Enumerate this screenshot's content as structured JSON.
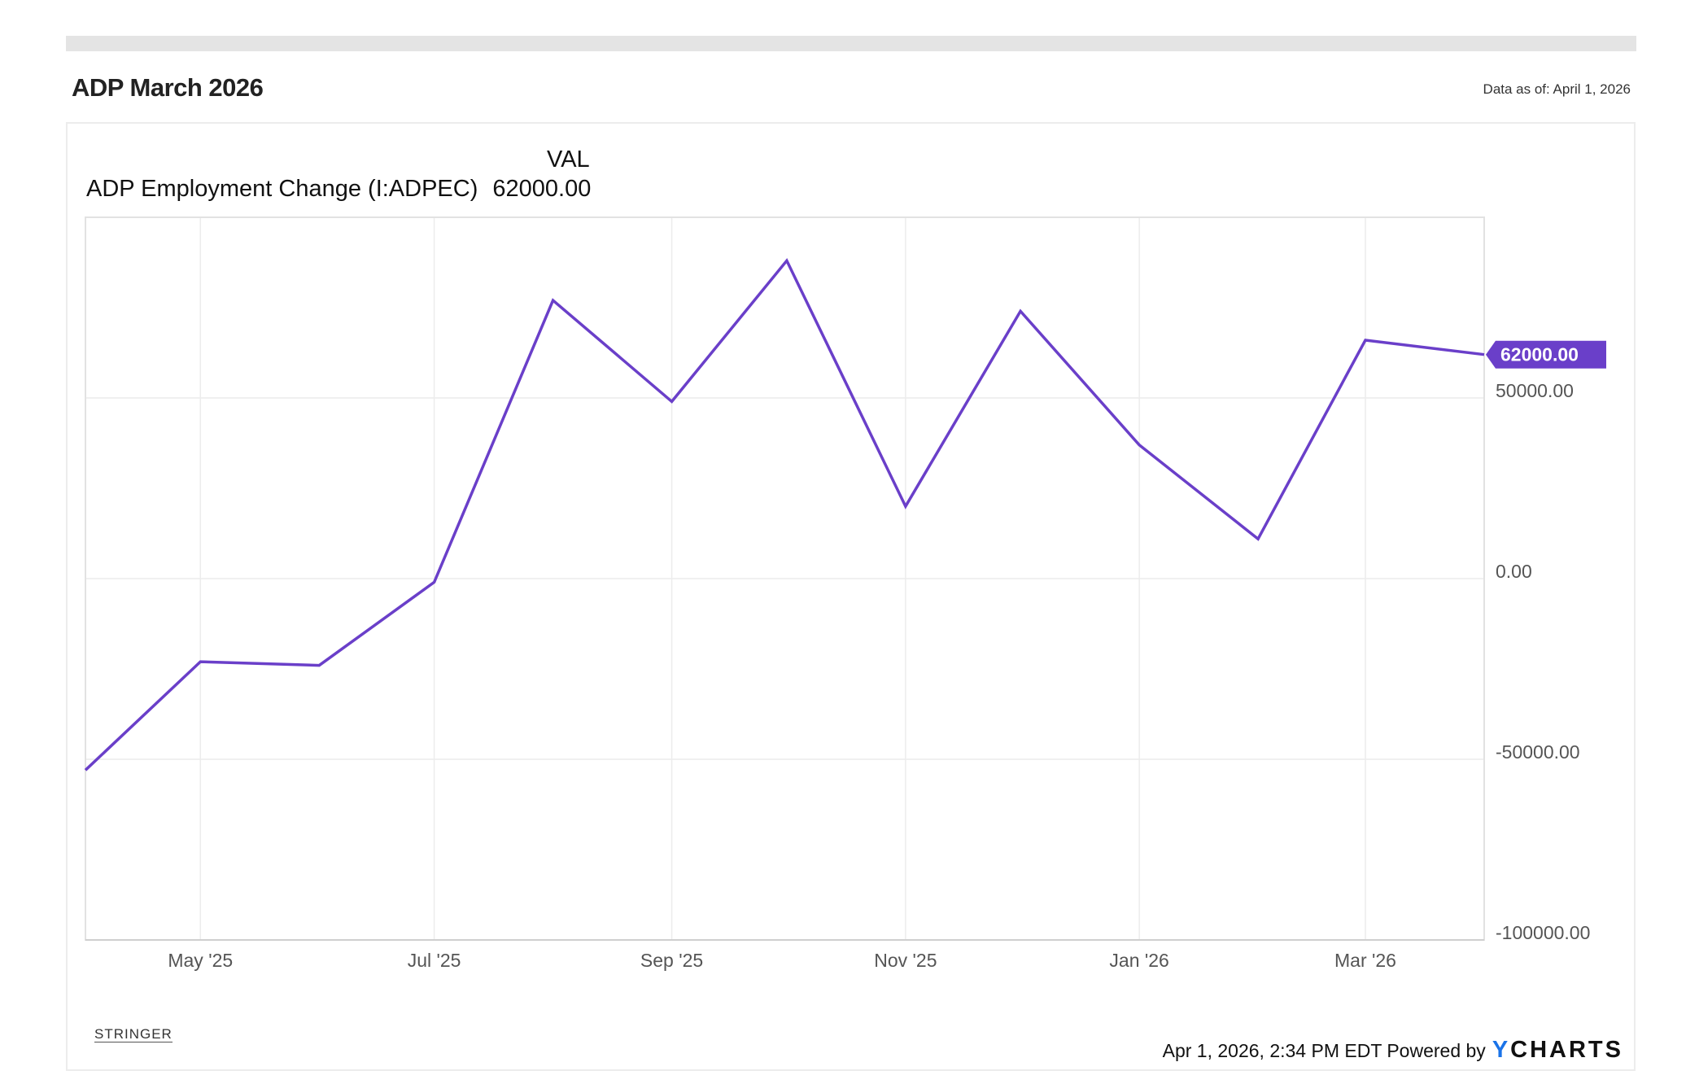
{
  "header": {
    "title": "ADP March 2026",
    "data_as_of": "Data as of: April 1, 2026"
  },
  "legend": {
    "column_header": "VAL",
    "series_label": "ADP Employment Change (I:ADPEC)",
    "series_value": "62000.00"
  },
  "footer": {
    "logo_text": "STRINGER",
    "timestamp": "Apr 1, 2026, 2:34 PM EDT Powered by",
    "brand_y": "Y",
    "brand_rest": "CHARTS"
  },
  "colors": {
    "series": "#6a3fc9",
    "grid": "#ececec",
    "axis_text": "#555555"
  },
  "chart_data": {
    "type": "line",
    "title": "ADP March 2026",
    "x": [
      "2025-03-31",
      "2025-04-30",
      "2025-05-31",
      "2025-06-30",
      "2025-07-31",
      "2025-08-31",
      "2025-09-30",
      "2025-10-31",
      "2025-11-30",
      "2025-12-31",
      "2026-01-31",
      "2026-02-28",
      "2026-03-31"
    ],
    "series": [
      {
        "name": "ADP Employment Change (I:ADPEC)",
        "values": [
          -53000,
          -23000,
          -24000,
          -1000,
          77000,
          49000,
          88000,
          20000,
          74000,
          37000,
          11000,
          66000,
          62000
        ]
      }
    ],
    "x_ticks": [
      {
        "date": "2025-04-30",
        "label": "May '25"
      },
      {
        "date": "2025-06-30",
        "label": "Jul '25"
      },
      {
        "date": "2025-08-31",
        "label": "Sep '25"
      },
      {
        "date": "2025-10-31",
        "label": "Nov '25"
      },
      {
        "date": "2025-12-31",
        "label": "Jan '26"
      },
      {
        "date": "2026-02-28",
        "label": "Mar '26"
      }
    ],
    "y_ticks": [
      {
        "value": 50000,
        "label": "50000.00"
      },
      {
        "value": 0,
        "label": "0.00"
      },
      {
        "value": -50000,
        "label": "-50000.00"
      },
      {
        "value": -100000,
        "label": "-100000.00"
      }
    ],
    "last_value_label": "62000.00",
    "xlim": [
      "2025-03-31",
      "2026-03-31"
    ],
    "ylim": [
      -100000,
      100000
    ],
    "y_axis_side": "right",
    "grid": true
  }
}
